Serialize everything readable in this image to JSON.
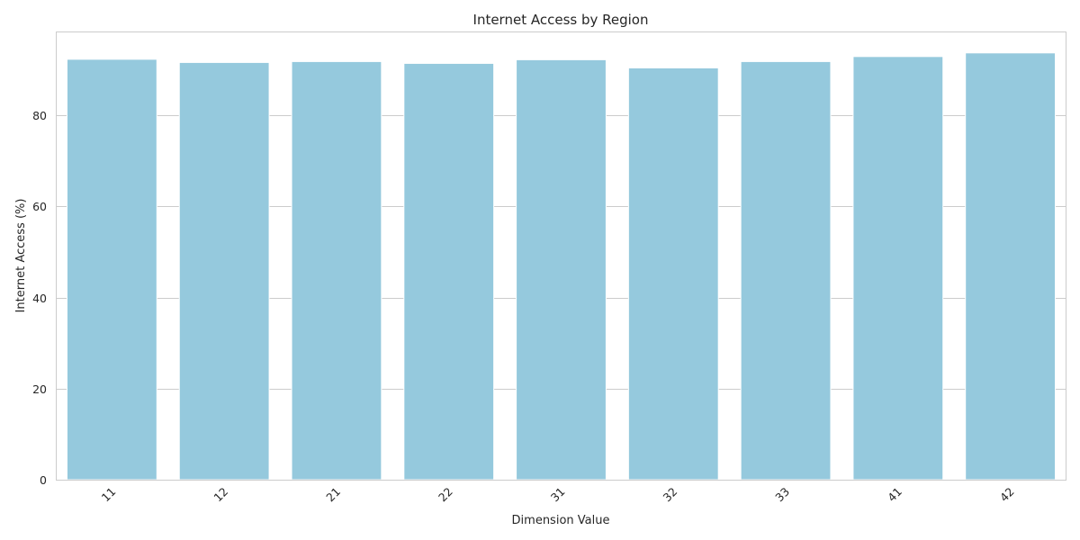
{
  "chart_data": {
    "type": "bar",
    "title": "Internet Access by Region",
    "xlabel": "Dimension Value",
    "ylabel": "Internet Access (%)",
    "categories": [
      "11",
      "12",
      "21",
      "22",
      "31",
      "32",
      "33",
      "41",
      "42"
    ],
    "values": [
      92.3,
      91.6,
      91.8,
      91.4,
      92.2,
      90.4,
      91.8,
      92.9,
      93.7
    ],
    "ylim": [
      0,
      98.4
    ],
    "yticks": [
      0,
      20,
      40,
      60,
      80
    ],
    "grid": "horizontal",
    "legend": "none",
    "x_tick_rotation": 45,
    "colors": {
      "bar": "#95c9dd"
    }
  }
}
